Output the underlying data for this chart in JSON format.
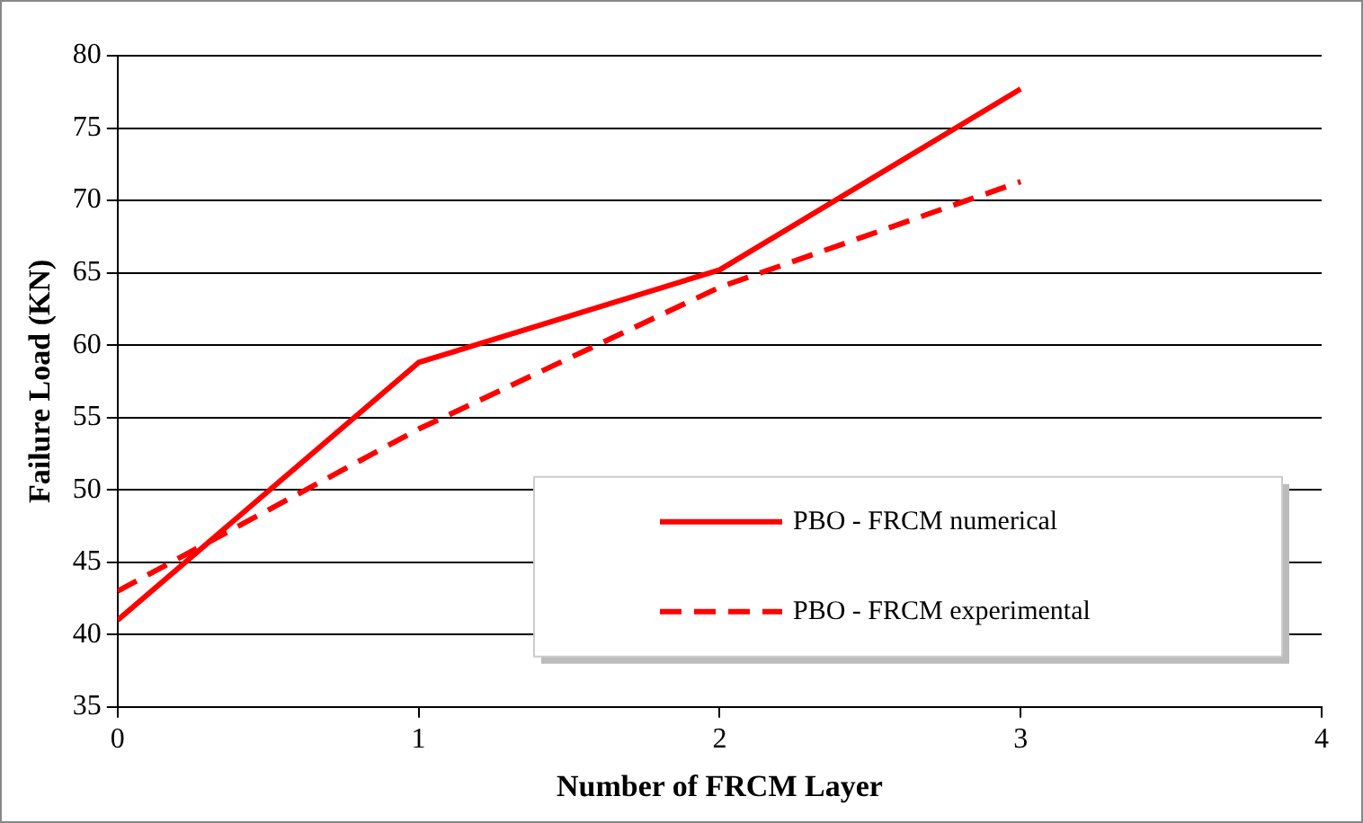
{
  "chart_data": {
    "type": "line",
    "xlabel": "Number of FRCM Layer",
    "ylabel": "Failure Load (KN)",
    "x": [
      0,
      1,
      2,
      3
    ],
    "series": [
      {
        "name": "PBO - FRCM numerical",
        "color": "#ff0000",
        "values": [
          41,
          58.8,
          65.2,
          77.7
        ],
        "line_style": "solid"
      },
      {
        "name": "PBO - FRCM experimental",
        "color": "#ff0000",
        "values": [
          43,
          54.2,
          64,
          71.3
        ],
        "line_style": "dashed"
      }
    ],
    "xlim": [
      0,
      4
    ],
    "xticks": [
      0,
      1,
      2,
      3,
      4
    ],
    "ylim": [
      35,
      80
    ],
    "yticks": [
      35,
      40,
      45,
      50,
      55,
      60,
      65,
      70,
      75,
      80
    ],
    "grid": "y",
    "legend": "bottom right",
    "marker": "none"
  }
}
